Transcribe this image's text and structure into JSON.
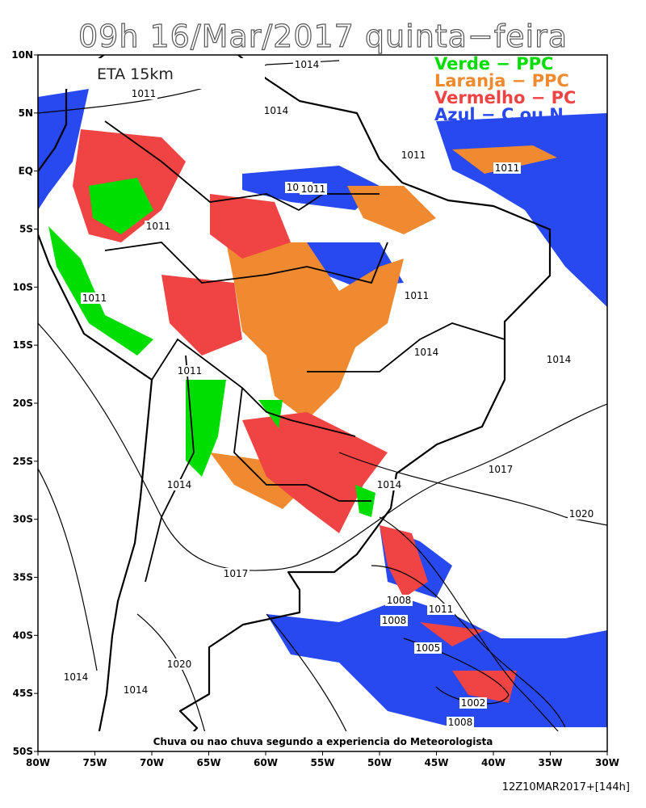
{
  "header": {
    "title": "09h 16/Mar/2017 quinta−feira"
  },
  "map": {
    "model_label": "ETA 15km",
    "legend": [
      {
        "label": "Verde − PPC",
        "color": "#00dd00"
      },
      {
        "label": "Laranja − PPC",
        "color": "#f08a30"
      },
      {
        "label": "Vermelho − PC",
        "color": "#f04444"
      },
      {
        "label": "Azul − C ou N",
        "color": "#2848f0"
      }
    ],
    "lat_range": [
      10,
      -50
    ],
    "lon_range": [
      -80,
      -30
    ],
    "lat_ticks": [
      {
        "value": 10,
        "label": "10N"
      },
      {
        "value": 5,
        "label": "5N"
      },
      {
        "value": 0,
        "label": "EQ"
      },
      {
        "value": -5,
        "label": "5S"
      },
      {
        "value": -10,
        "label": "10S"
      },
      {
        "value": -15,
        "label": "15S"
      },
      {
        "value": -20,
        "label": "20S"
      },
      {
        "value": -25,
        "label": "25S"
      },
      {
        "value": -30,
        "label": "30S"
      },
      {
        "value": -35,
        "label": "35S"
      },
      {
        "value": -40,
        "label": "40S"
      },
      {
        "value": -45,
        "label": "45S"
      },
      {
        "value": -50,
        "label": "50S"
      }
    ],
    "lon_ticks": [
      {
        "value": -80,
        "label": "80W"
      },
      {
        "value": -75,
        "label": "75W"
      },
      {
        "value": -70,
        "label": "70W"
      },
      {
        "value": -65,
        "label": "65W"
      },
      {
        "value": -60,
        "label": "60W"
      },
      {
        "value": -55,
        "label": "55W"
      },
      {
        "value": -50,
        "label": "50W"
      },
      {
        "value": -45,
        "label": "45W"
      },
      {
        "value": -40,
        "label": "40W"
      },
      {
        "value": -35,
        "label": "35W"
      },
      {
        "value": -30,
        "label": "30W"
      }
    ],
    "isobar_labels": [
      "1014",
      "1011",
      "1014",
      "1011",
      "1011",
      "1011",
      "1011",
      "1011",
      "1011",
      "1014",
      "1014",
      "1011",
      "1011",
      "1014",
      "1017",
      "1020",
      "1014",
      "1017",
      "1008",
      "1011",
      "1008",
      "1005",
      "1002",
      "1008",
      "1020",
      "1014",
      "1014"
    ],
    "note": "Chuva ou nao chuva segundo a experiencia do Meteorologista"
  },
  "footer": {
    "run": "12Z10MAR2017+[144h]"
  }
}
